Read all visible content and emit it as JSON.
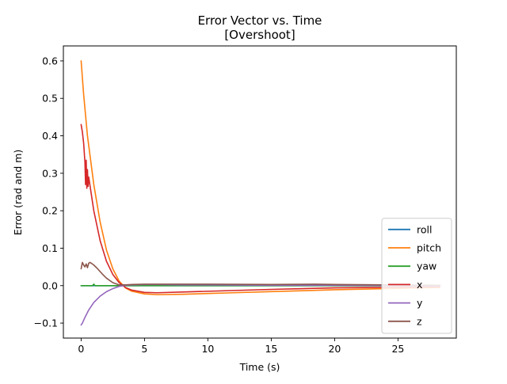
{
  "chart_data": {
    "type": "line",
    "title": "Error Vector vs. Time",
    "subtitle": "[Overshoot]",
    "xlabel": "Time (s)",
    "ylabel": "Error (rad and m)",
    "xlim": [
      -1.4,
      29.6
    ],
    "ylim": [
      -0.14,
      0.64
    ],
    "xticks": [
      0,
      5,
      10,
      15,
      20,
      25
    ],
    "xtick_labels": [
      "0",
      "5",
      "10",
      "15",
      "20",
      "25"
    ],
    "yticks": [
      -0.1,
      0.0,
      0.1,
      0.2,
      0.3,
      0.4,
      0.5,
      0.6
    ],
    "ytick_labels": [
      "−0.1",
      "0.0",
      "0.1",
      "0.2",
      "0.3",
      "0.4",
      "0.5",
      "0.6"
    ],
    "grid": false,
    "legend_position": "lower-right",
    "series": [
      {
        "name": "roll",
        "color": "#1f77b4",
        "x": [
          0,
          28.3
        ],
        "y": [
          0.0,
          0.0
        ]
      },
      {
        "name": "pitch",
        "color": "#ff7f0e",
        "x": [
          0,
          0.2,
          0.5,
          1,
          1.5,
          2,
          2.5,
          3,
          3.5,
          4,
          5,
          6,
          8,
          10,
          12,
          15,
          18,
          20,
          24,
          28.3
        ],
        "y": [
          0.6,
          0.51,
          0.4,
          0.27,
          0.17,
          0.095,
          0.045,
          0.012,
          -0.006,
          -0.015,
          -0.022,
          -0.024,
          -0.023,
          -0.021,
          -0.019,
          -0.016,
          -0.013,
          -0.011,
          -0.008,
          -0.005
        ]
      },
      {
        "name": "yaw",
        "color": "#2ca02c",
        "x": [
          0,
          0.5,
          0.9,
          1.0,
          1.1,
          2,
          5,
          10,
          15,
          20,
          28.3
        ],
        "y": [
          0.0,
          0.0,
          0.0,
          0.004,
          0.0,
          0.0,
          0.0,
          0.0,
          0.0,
          0.0,
          0.0
        ]
      },
      {
        "name": "x",
        "color": "#d62728",
        "x": [
          0,
          0.1,
          0.2,
          0.3,
          0.35,
          0.4,
          0.45,
          0.5,
          0.55,
          0.6,
          0.8,
          1,
          1.5,
          2,
          2.5,
          3,
          3.5,
          4,
          5,
          6,
          8,
          10,
          15,
          20,
          28.3
        ],
        "y": [
          0.43,
          0.41,
          0.38,
          0.33,
          0.27,
          0.335,
          0.26,
          0.31,
          0.265,
          0.29,
          0.245,
          0.2,
          0.12,
          0.065,
          0.03,
          0.008,
          -0.005,
          -0.012,
          -0.018,
          -0.019,
          -0.017,
          -0.015,
          -0.01,
          -0.006,
          -0.003
        ]
      },
      {
        "name": "y",
        "color": "#9467bd",
        "x": [
          0,
          0.1,
          0.3,
          0.6,
          1,
          1.5,
          2,
          2.5,
          3,
          3.5,
          4,
          5,
          6,
          8,
          10,
          15,
          20,
          28.3
        ],
        "y": [
          -0.105,
          -0.1,
          -0.085,
          -0.065,
          -0.045,
          -0.028,
          -0.016,
          -0.008,
          -0.002,
          0.001,
          0.002,
          0.003,
          0.003,
          0.002,
          0.002,
          0.001,
          0.001,
          0.0
        ]
      },
      {
        "name": "z",
        "color": "#8c564b",
        "x": [
          0,
          0.1,
          0.2,
          0.3,
          0.4,
          0.5,
          0.6,
          0.7,
          0.8,
          1,
          1.3,
          1.7,
          2,
          2.5,
          3,
          3.5,
          4,
          5,
          8,
          10,
          15,
          18.5,
          20,
          24,
          28.3
        ],
        "y": [
          0.045,
          0.062,
          0.055,
          0.05,
          0.058,
          0.048,
          0.06,
          0.062,
          0.06,
          0.055,
          0.045,
          0.03,
          0.02,
          0.008,
          0.002,
          0.002,
          0.003,
          0.004,
          0.004,
          0.004,
          0.003,
          0.004,
          0.003,
          0.002,
          0.001
        ]
      }
    ]
  }
}
